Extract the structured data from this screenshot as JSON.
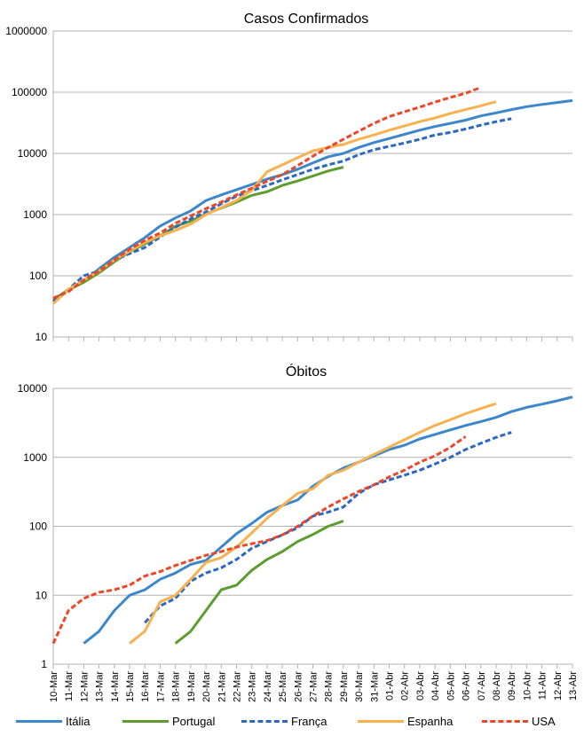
{
  "chart_data": [
    {
      "type": "line",
      "title": "Casos Confirmados",
      "yscale": "log",
      "ylim": [
        10,
        1000000
      ],
      "yticks": [
        "10",
        "100",
        "1000",
        "10000",
        "100000",
        "1000000"
      ],
      "grid": true,
      "categories": [
        "10-Mar",
        "11-Mar",
        "12-Mar",
        "13-Mar",
        "14-Mar",
        "15-Mar",
        "16-Mar",
        "17-Mar",
        "18-Mar",
        "19-Mar",
        "20-Mar",
        "21-Mar",
        "22-Mar",
        "23-Mar",
        "24-Mar",
        "25-Mar",
        "26-Mar",
        "27-Mar",
        "28-Mar",
        "29-Mar",
        "30-Mar",
        "31-Mar",
        "01-Abr",
        "02-Abr",
        "03-Abr",
        "04-Abr",
        "05-Abr",
        "06-Abr",
        "07-Abr",
        "08-Abr",
        "09-Abr",
        "10-Abr",
        "11-Abr",
        "12-Abr",
        "13-Abr"
      ],
      "series": [
        {
          "name": "Itália",
          "color": "#3c87cc",
          "dash": "solid",
          "values": [
            38,
            60,
            80,
            130,
            200,
            290,
            420,
            650,
            880,
            1150,
            1700,
            2100,
            2550,
            3100,
            3800,
            4500,
            5500,
            7000,
            8800,
            10000,
            12500,
            15000,
            17500,
            20500,
            24000,
            27500,
            31000,
            35000,
            41000,
            46000,
            52000,
            58000,
            63000,
            68000,
            73000
          ]
        },
        {
          "name": "Portugal",
          "color": "#5d9d2f",
          "dash": "solid",
          "values": [
            41,
            59,
            78,
            112,
            169,
            245,
            331,
            448,
            642,
            785,
            1020,
            1280,
            1600,
            2060,
            2362,
            2995,
            3544,
            4268,
            5170,
            5962,
            null,
            null,
            null,
            null,
            null,
            null,
            null,
            null,
            null,
            null,
            null,
            null,
            null,
            null,
            null
          ]
        },
        {
          "name": "França",
          "color": "#2b67c4",
          "dash": "dashed",
          "values": [
            38,
            60,
            100,
            120,
            180,
            230,
            290,
            430,
            620,
            850,
            1100,
            1500,
            2000,
            2450,
            3000,
            3700,
            4500,
            5500,
            6500,
            7500,
            9500,
            11500,
            13000,
            14800,
            17000,
            20000,
            22000,
            25000,
            29000,
            33000,
            37000,
            null,
            null,
            null,
            null
          ]
        },
        {
          "name": "Espanha",
          "color": "#f7b24f",
          "dash": "solid",
          "values": [
            35,
            60,
            85,
            120,
            180,
            250,
            350,
            450,
            550,
            700,
            1000,
            1300,
            1700,
            2500,
            5000,
            6500,
            8500,
            11000,
            12500,
            14000,
            17000,
            20000,
            24000,
            28000,
            33000,
            38000,
            45000,
            52000,
            60000,
            70000,
            null,
            null,
            null,
            null,
            null
          ]
        },
        {
          "name": "USA",
          "color": "#ee4627",
          "dash": "dashed",
          "values": [
            43,
            55,
            85,
            120,
            180,
            270,
            380,
            500,
            720,
            950,
            1250,
            1600,
            2100,
            2700,
            3500,
            4500,
            6300,
            9000,
            12500,
            17000,
            23000,
            31000,
            40000,
            48000,
            57000,
            69000,
            82000,
            96000,
            120000,
            null,
            null,
            null,
            null,
            null,
            null
          ]
        }
      ]
    },
    {
      "type": "line",
      "title": "Óbitos",
      "yscale": "log",
      "ylim": [
        1,
        10000
      ],
      "yticks": [
        "1",
        "10",
        "100",
        "1000",
        "10000"
      ],
      "grid": true,
      "categories": [
        "10-Mar",
        "11-Mar",
        "12-Mar",
        "13-Mar",
        "14-Mar",
        "15-Mar",
        "16-Mar",
        "17-Mar",
        "18-Mar",
        "19-Mar",
        "20-Mar",
        "21-Mar",
        "22-Mar",
        "23-Mar",
        "24-Mar",
        "25-Mar",
        "26-Mar",
        "27-Mar",
        "28-Mar",
        "29-Mar",
        "30-Mar",
        "31-Mar",
        "01-Abr",
        "02-Abr",
        "03-Abr",
        "04-Abr",
        "05-Abr",
        "06-Abr",
        "07-Abr",
        "08-Abr",
        "09-Abr",
        "10-Abr",
        "11-Abr",
        "12-Abr",
        "13-Abr"
      ],
      "series": [
        {
          "name": "Itália",
          "color": "#3c87cc",
          "dash": "solid",
          "values": [
            null,
            null,
            2,
            3,
            6,
            10,
            12,
            17,
            21,
            28,
            32,
            50,
            78,
            110,
            160,
            200,
            240,
            380,
            530,
            700,
            850,
            1050,
            1300,
            1500,
            1850,
            2150,
            2500,
            2900,
            3300,
            3800,
            4600,
            5300,
            5900,
            6600,
            7500
          ]
        },
        {
          "name": "Portugal",
          "color": "#5d9d2f",
          "dash": "solid",
          "values": [
            null,
            null,
            null,
            null,
            null,
            null,
            null,
            null,
            2,
            3,
            6,
            12,
            14,
            23,
            33,
            43,
            60,
            76,
            100,
            119,
            null,
            null,
            null,
            null,
            null,
            null,
            null,
            null,
            null,
            null,
            null,
            null,
            null,
            null,
            null
          ]
        },
        {
          "name": "França",
          "color": "#2b67c4",
          "dash": "dashed",
          "values": [
            null,
            null,
            null,
            null,
            null,
            null,
            4,
            7,
            9,
            16,
            21,
            25,
            33,
            48,
            60,
            75,
            95,
            140,
            160,
            190,
            300,
            400,
            470,
            550,
            650,
            800,
            1000,
            1300,
            1600,
            1950,
            2300,
            null,
            null,
            null,
            null
          ]
        },
        {
          "name": "Espanha",
          "color": "#f7b24f",
          "dash": "solid",
          "values": [
            null,
            null,
            null,
            null,
            null,
            2,
            3,
            8,
            10,
            17,
            30,
            35,
            50,
            80,
            130,
            200,
            300,
            350,
            550,
            650,
            850,
            1100,
            1400,
            1800,
            2300,
            2900,
            3500,
            4300,
            5100,
            6000,
            null,
            null,
            null,
            null,
            null
          ]
        },
        {
          "name": "USA",
          "color": "#ee4627",
          "dash": "dashed",
          "values": [
            2,
            6,
            9,
            11,
            12,
            14,
            19,
            22,
            27,
            32,
            38,
            43,
            50,
            56,
            62,
            75,
            100,
            140,
            190,
            250,
            320,
            400,
            520,
            650,
            850,
            1050,
            1400,
            2000,
            null,
            null,
            null,
            null,
            null,
            null,
            null
          ]
        }
      ]
    }
  ],
  "legend": {
    "placement": "bottom",
    "items": [
      {
        "name": "Itália",
        "color": "#3c87cc",
        "dash": "solid"
      },
      {
        "name": "Portugal",
        "color": "#5d9d2f",
        "dash": "solid"
      },
      {
        "name": "França",
        "color": "#2b67c4",
        "dash": "dashed"
      },
      {
        "name": "Espanha",
        "color": "#f7b24f",
        "dash": "solid"
      },
      {
        "name": "USA",
        "color": "#ee4627",
        "dash": "dashed"
      }
    ]
  }
}
